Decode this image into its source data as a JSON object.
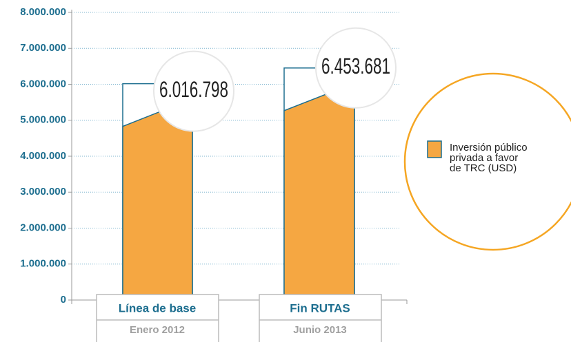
{
  "chart_data": {
    "type": "bar",
    "categories": [
      "Línea de base",
      "Fin RUTAS"
    ],
    "subcategories": [
      "Enero 2012",
      "Junio 2013"
    ],
    "series": [
      {
        "name": "Inversión público privada a favor de TRC (USD)",
        "color": "#f5a742",
        "values": [
          6016798,
          6453681
        ],
        "value_labels": [
          "6.016.798",
          "6.453.681"
        ]
      }
    ],
    "ylim": [
      0,
      8000000
    ],
    "yticks": [
      0,
      {
        "value": 1000000,
        "label": "1.000.000"
      },
      {
        "value": 2000000,
        "label": "2.000.000"
      },
      {
        "value": 3000000,
        "label": "3.000.000"
      },
      {
        "value": 4000000,
        "label": "4.000.000"
      },
      {
        "value": 5000000,
        "label": "5.000.000"
      },
      {
        "value": 6000000,
        "label": "6.000.000"
      },
      {
        "value": 7000000,
        "label": "7.000.000"
      },
      {
        "value": 8000000,
        "label": "8.000.000"
      }
    ],
    "grid": true
  }
}
